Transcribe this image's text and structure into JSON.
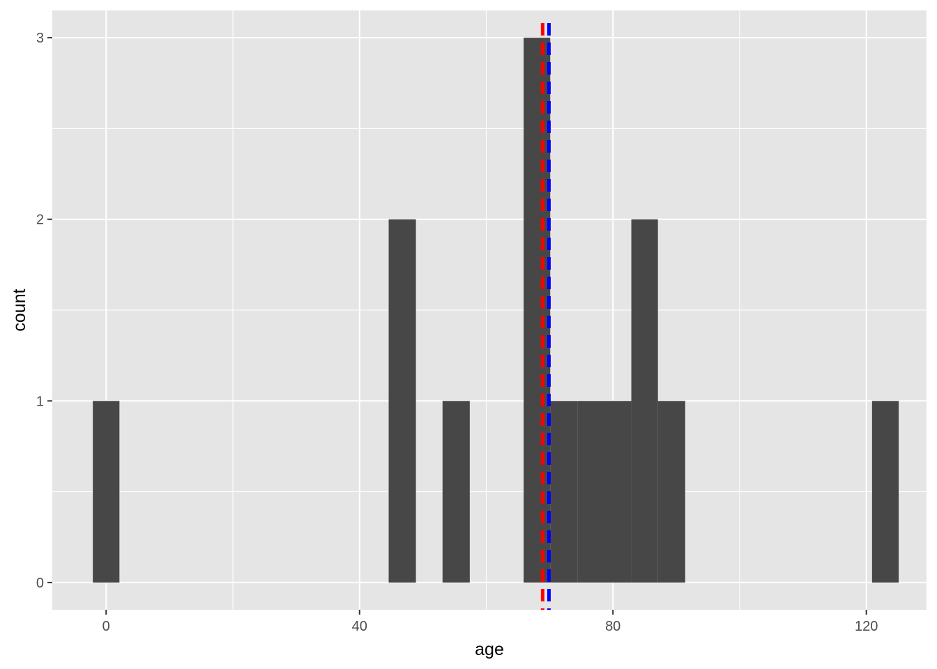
{
  "chart_data": {
    "type": "bar",
    "subtype": "histogram",
    "title": "",
    "xlabel": "age",
    "ylabel": "count",
    "xlim": [
      -8.5,
      129.5
    ],
    "ylim": [
      -0.15,
      3.15
    ],
    "x_ticks": [
      0,
      40,
      80,
      120
    ],
    "y_ticks": [
      0,
      1,
      2,
      3
    ],
    "x_minor_gridlines": [
      20,
      60,
      100
    ],
    "y_minor_gridlines": [
      0.5,
      1.5,
      2.5
    ],
    "grid": true,
    "legend": "none",
    "bin_width": 4.25,
    "bins": [
      {
        "x_start": -2.1,
        "x_end": 2.1,
        "count": 1
      },
      {
        "x_start": 44.6,
        "x_end": 48.9,
        "count": 2
      },
      {
        "x_start": 53.1,
        "x_end": 57.4,
        "count": 1
      },
      {
        "x_start": 65.9,
        "x_end": 70.1,
        "count": 3
      },
      {
        "x_start": 70.1,
        "x_end": 74.4,
        "count": 1
      },
      {
        "x_start": 74.4,
        "x_end": 78.6,
        "count": 1
      },
      {
        "x_start": 78.6,
        "x_end": 82.9,
        "count": 1
      },
      {
        "x_start": 82.9,
        "x_end": 87.1,
        "count": 2
      },
      {
        "x_start": 87.1,
        "x_end": 91.4,
        "count": 1
      },
      {
        "x_start": 120.9,
        "x_end": 125.1,
        "count": 1
      }
    ],
    "reference_lines": [
      {
        "x": 68.9,
        "color": "#ff0000",
        "style": "dashed"
      },
      {
        "x": 69.9,
        "color": "#0000ff",
        "style": "dashed"
      }
    ]
  },
  "colors": {
    "panel_background": "#e5e5e5",
    "gridline": "#ffffff",
    "bar_fill": "#474747",
    "tick_text": "#4d4d4d",
    "axis_title_text": "#000000"
  }
}
